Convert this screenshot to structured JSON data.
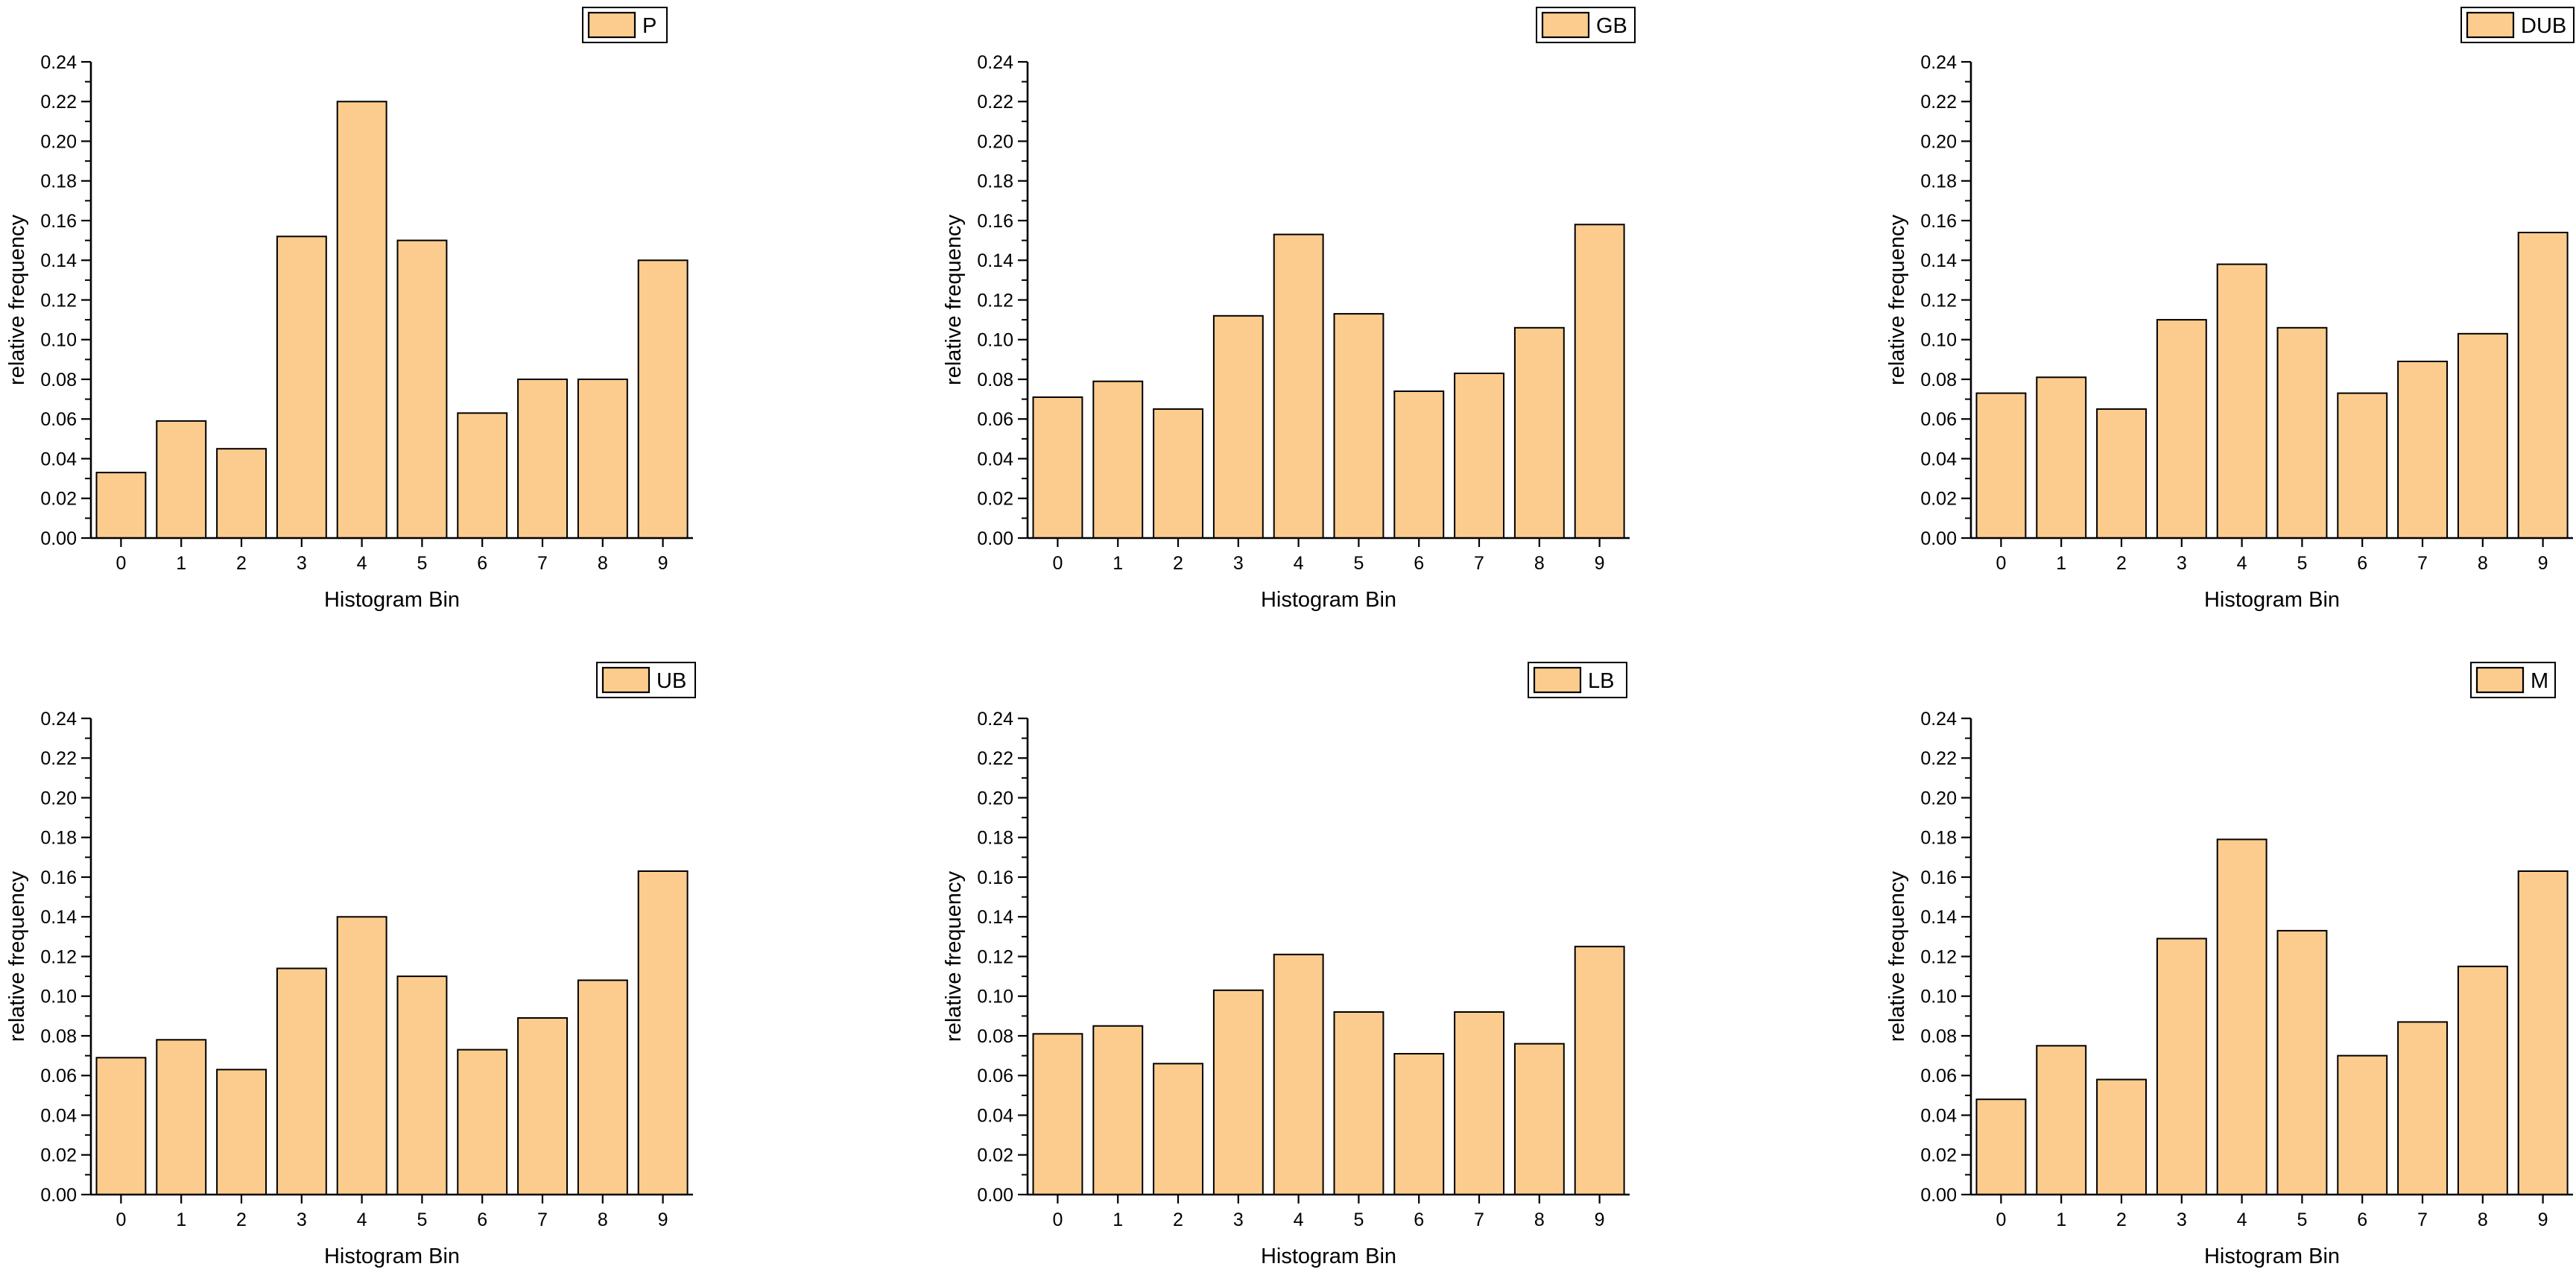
{
  "figure": {
    "background": "#ffffff",
    "style": {
      "bar_fill": "#FCCC8E",
      "bar_stroke": "#000000",
      "axis_color": "#000000",
      "text_color": "#000000",
      "legend_box_fill": "#ffffff",
      "legend_box_stroke": "#000000"
    }
  },
  "chart_data": [
    {
      "type": "bar",
      "legend": "P",
      "xlabel": "Histogram Bin",
      "ylabel": "relative frequency",
      "categories": [
        "0",
        "1",
        "2",
        "3",
        "4",
        "5",
        "6",
        "7",
        "8",
        "9"
      ],
      "values": [
        0.033,
        0.059,
        0.045,
        0.152,
        0.22,
        0.15,
        0.063,
        0.08,
        0.08,
        0.14
      ],
      "ylim": [
        0,
        0.24
      ],
      "ytick_step": 0.02,
      "minor_tick_step": 0.01,
      "grid": false,
      "legend_position": "top-right"
    },
    {
      "type": "bar",
      "legend": "GB",
      "xlabel": "Histogram Bin",
      "ylabel": "relative frequency",
      "categories": [
        "0",
        "1",
        "2",
        "3",
        "4",
        "5",
        "6",
        "7",
        "8",
        "9"
      ],
      "values": [
        0.071,
        0.079,
        0.065,
        0.112,
        0.153,
        0.113,
        0.074,
        0.083,
        0.106,
        0.158
      ],
      "ylim": [
        0,
        0.24
      ],
      "ytick_step": 0.02,
      "minor_tick_step": 0.01,
      "grid": false,
      "legend_position": "top-right"
    },
    {
      "type": "bar",
      "legend": "DUB",
      "xlabel": "Histogram Bin",
      "ylabel": "relative frequency",
      "categories": [
        "0",
        "1",
        "2",
        "3",
        "4",
        "5",
        "6",
        "7",
        "8",
        "9"
      ],
      "values": [
        0.073,
        0.081,
        0.065,
        0.11,
        0.138,
        0.106,
        0.073,
        0.089,
        0.103,
        0.154
      ],
      "ylim": [
        0,
        0.24
      ],
      "ytick_step": 0.02,
      "minor_tick_step": 0.01,
      "grid": false,
      "legend_position": "top-right"
    },
    {
      "type": "bar",
      "legend": "UB",
      "xlabel": "Histogram Bin",
      "ylabel": "relative frequency",
      "categories": [
        "0",
        "1",
        "2",
        "3",
        "4",
        "5",
        "6",
        "7",
        "8",
        "9"
      ],
      "values": [
        0.069,
        0.078,
        0.063,
        0.114,
        0.14,
        0.11,
        0.073,
        0.089,
        0.108,
        0.163
      ],
      "ylim": [
        0,
        0.24
      ],
      "ytick_step": 0.02,
      "minor_tick_step": 0.01,
      "grid": false,
      "legend_position": "top-right"
    },
    {
      "type": "bar",
      "legend": "LB",
      "xlabel": "Histogram Bin",
      "ylabel": "relative frequency",
      "categories": [
        "0",
        "1",
        "2",
        "3",
        "4",
        "5",
        "6",
        "7",
        "8",
        "9"
      ],
      "values": [
        0.081,
        0.085,
        0.066,
        0.103,
        0.121,
        0.092,
        0.071,
        0.092,
        0.076,
        0.125
      ],
      "ylim": [
        0,
        0.24
      ],
      "ytick_step": 0.02,
      "minor_tick_step": 0.01,
      "grid": false,
      "legend_position": "top-right"
    },
    {
      "type": "bar",
      "legend": "M",
      "xlabel": "Histogram Bin",
      "ylabel": "relative frequency",
      "categories": [
        "0",
        "1",
        "2",
        "3",
        "4",
        "5",
        "6",
        "7",
        "8",
        "9"
      ],
      "values": [
        0.048,
        0.075,
        0.058,
        0.129,
        0.179,
        0.133,
        0.07,
        0.087,
        0.115,
        0.163
      ],
      "ylim": [
        0,
        0.24
      ],
      "ytick_step": 0.02,
      "minor_tick_step": 0.01,
      "grid": false,
      "legend_position": "top-right"
    }
  ]
}
